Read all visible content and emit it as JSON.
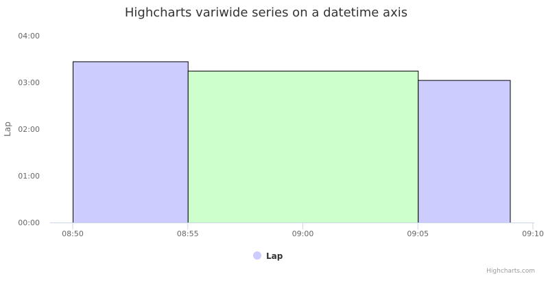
{
  "chart_data": {
    "type": "bar",
    "variant": "variwide",
    "title": "Highcharts variwide series on a datetime axis",
    "xlabel": "",
    "ylabel": "Lap",
    "x_axis_type": "datetime",
    "x_ticks": [
      "08:50",
      "08:55",
      "09:00",
      "09:05",
      "09:10"
    ],
    "xlim": [
      "08:50",
      "09:10"
    ],
    "y_ticks": [
      "00:00",
      "01:00",
      "02:00",
      "03:00",
      "04:00"
    ],
    "ylim_seconds": [
      0,
      240
    ],
    "grid": false,
    "legend": {
      "position": "bottom-center",
      "items": [
        {
          "name": "Lap",
          "color": "#ccccff"
        }
      ]
    },
    "series": [
      {
        "name": "Lap",
        "points": [
          {
            "start": "08:50",
            "end": "08:55",
            "lap": "03:27",
            "lap_seconds": 207,
            "color": "#ccccff"
          },
          {
            "start": "08:55",
            "end": "09:05",
            "lap": "03:15",
            "lap_seconds": 195,
            "color": "#ccffcc"
          },
          {
            "start": "09:05",
            "end": "09:09",
            "lap": "03:03",
            "lap_seconds": 183,
            "color": "#ccccff"
          }
        ]
      }
    ]
  },
  "credits": "Highcharts.com"
}
